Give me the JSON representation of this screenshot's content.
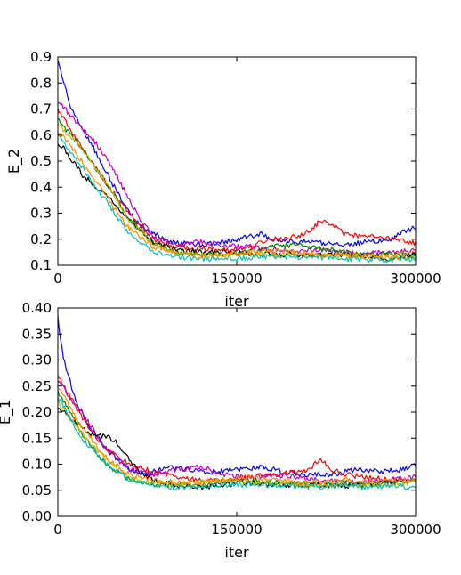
{
  "chart_data": [
    {
      "type": "line",
      "ylabel": "E_2",
      "xlabel": "iter",
      "xlim": [
        0,
        300000
      ],
      "ylim": [
        0.1,
        0.9
      ],
      "x_ticks": [
        0,
        150000,
        300000
      ],
      "x_tick_labels": [
        "0",
        "150000",
        "300000"
      ],
      "y_ticks": [
        0.1,
        0.2,
        0.3,
        0.4,
        0.5,
        0.6,
        0.7,
        0.8,
        0.9
      ],
      "y_tick_labels": [
        "0.1",
        "0.2",
        "0.3",
        "0.4",
        "0.5",
        "0.6",
        "0.7",
        "0.8",
        "0.9"
      ],
      "grid": false,
      "legend": "none",
      "series": [
        {
          "color": "#0000ff",
          "x": [
            0,
            10000,
            20000,
            30000,
            40000,
            50000,
            60000,
            70000,
            80000,
            90000,
            100000,
            120000,
            140000,
            160000,
            170000,
            180000,
            200000,
            220000,
            240000,
            260000,
            280000,
            290000,
            300000
          ],
          "y": [
            0.88,
            0.72,
            0.63,
            0.55,
            0.46,
            0.38,
            0.3,
            0.25,
            0.22,
            0.2,
            0.185,
            0.18,
            0.19,
            0.21,
            0.22,
            0.2,
            0.19,
            0.185,
            0.18,
            0.19,
            0.2,
            0.23,
            0.245
          ]
        },
        {
          "color": "#ff0000",
          "x": [
            0,
            20000,
            40000,
            60000,
            80000,
            100000,
            120000,
            140000,
            160000,
            180000,
            200000,
            210000,
            220000,
            230000,
            240000,
            260000,
            280000,
            300000
          ],
          "y": [
            0.7,
            0.55,
            0.42,
            0.3,
            0.2,
            0.17,
            0.165,
            0.16,
            0.17,
            0.2,
            0.21,
            0.23,
            0.27,
            0.26,
            0.22,
            0.21,
            0.2,
            0.185
          ]
        },
        {
          "color": "#bf00bf",
          "x": [
            0,
            10000,
            20000,
            30000,
            40000,
            50000,
            60000,
            70000,
            80000,
            100000,
            120000,
            140000,
            160000,
            180000,
            200000,
            220000,
            240000,
            260000,
            280000,
            300000
          ],
          "y": [
            0.73,
            0.68,
            0.63,
            0.58,
            0.52,
            0.44,
            0.35,
            0.27,
            0.21,
            0.18,
            0.19,
            0.175,
            0.17,
            0.16,
            0.155,
            0.16,
            0.15,
            0.145,
            0.15,
            0.155
          ]
        },
        {
          "color": "#008000",
          "x": [
            0,
            20000,
            40000,
            60000,
            80000,
            100000,
            120000,
            140000,
            160000,
            180000,
            200000,
            220000,
            240000,
            260000,
            280000,
            300000
          ],
          "y": [
            0.66,
            0.55,
            0.42,
            0.28,
            0.19,
            0.15,
            0.14,
            0.145,
            0.15,
            0.17,
            0.18,
            0.165,
            0.15,
            0.14,
            0.145,
            0.14
          ]
        },
        {
          "color": "#000000",
          "x": [
            0,
            5000,
            20000,
            40000,
            60000,
            80000,
            100000,
            120000,
            140000,
            160000,
            180000,
            200000,
            220000,
            240000,
            260000,
            280000,
            300000
          ],
          "y": [
            0.57,
            0.55,
            0.45,
            0.37,
            0.27,
            0.19,
            0.16,
            0.15,
            0.15,
            0.145,
            0.14,
            0.14,
            0.14,
            0.14,
            0.13,
            0.125,
            0.14
          ]
        },
        {
          "color": "#bfbf00",
          "x": [
            0,
            20000,
            40000,
            60000,
            80000,
            100000,
            120000,
            140000,
            160000,
            180000,
            200000,
            220000,
            240000,
            260000,
            280000,
            300000
          ],
          "y": [
            0.64,
            0.55,
            0.42,
            0.27,
            0.18,
            0.15,
            0.14,
            0.14,
            0.145,
            0.14,
            0.14,
            0.14,
            0.135,
            0.13,
            0.13,
            0.13
          ]
        },
        {
          "color": "#00bfbf",
          "x": [
            0,
            20000,
            40000,
            60000,
            80000,
            100000,
            120000,
            140000,
            160000,
            180000,
            200000,
            220000,
            240000,
            260000,
            280000,
            300000
          ],
          "y": [
            0.6,
            0.48,
            0.35,
            0.22,
            0.15,
            0.13,
            0.125,
            0.125,
            0.13,
            0.135,
            0.13,
            0.13,
            0.125,
            0.12,
            0.12,
            0.125
          ]
        },
        {
          "color": "#ff8c00",
          "x": [
            0,
            20000,
            40000,
            60000,
            80000,
            100000,
            120000,
            140000,
            160000,
            180000,
            200000,
            220000,
            240000,
            260000,
            280000,
            300000
          ],
          "y": [
            0.62,
            0.5,
            0.37,
            0.24,
            0.17,
            0.145,
            0.135,
            0.14,
            0.15,
            0.155,
            0.15,
            0.14,
            0.14,
            0.135,
            0.14,
            0.145
          ]
        }
      ]
    },
    {
      "type": "line",
      "ylabel": "E_1",
      "xlabel": "iter",
      "xlim": [
        0,
        300000
      ],
      "ylim": [
        0.0,
        0.4
      ],
      "x_ticks": [
        0,
        150000,
        300000
      ],
      "x_tick_labels": [
        "0",
        "150000",
        "300000"
      ],
      "y_ticks": [
        0.0,
        0.05,
        0.1,
        0.15,
        0.2,
        0.25,
        0.3,
        0.35,
        0.4
      ],
      "y_tick_labels": [
        "0.00",
        "0.05",
        "0.10",
        "0.15",
        "0.20",
        "0.25",
        "0.30",
        "0.35",
        "0.40"
      ],
      "grid": false,
      "legend": "none",
      "series": [
        {
          "color": "#0000ff",
          "x": [
            0,
            5000,
            15000,
            30000,
            45000,
            60000,
            75000,
            90000,
            110000,
            130000,
            150000,
            170000,
            190000,
            210000,
            230000,
            250000,
            270000,
            290000,
            300000
          ],
          "y": [
            0.38,
            0.3,
            0.22,
            0.16,
            0.12,
            0.09,
            0.08,
            0.095,
            0.09,
            0.085,
            0.09,
            0.095,
            0.085,
            0.08,
            0.08,
            0.09,
            0.085,
            0.09,
            0.1
          ]
        },
        {
          "color": "#ff0000",
          "x": [
            0,
            20000,
            40000,
            60000,
            80000,
            100000,
            120000,
            140000,
            160000,
            180000,
            200000,
            210000,
            220000,
            230000,
            240000,
            260000,
            280000,
            300000
          ],
          "y": [
            0.27,
            0.19,
            0.13,
            0.1,
            0.085,
            0.075,
            0.07,
            0.07,
            0.075,
            0.08,
            0.085,
            0.09,
            0.11,
            0.09,
            0.08,
            0.075,
            0.07,
            0.07
          ]
        },
        {
          "color": "#bf00bf",
          "x": [
            0,
            20000,
            40000,
            60000,
            80000,
            100000,
            120000,
            140000,
            160000,
            180000,
            200000,
            220000,
            240000,
            260000,
            280000,
            300000
          ],
          "y": [
            0.26,
            0.2,
            0.13,
            0.09,
            0.08,
            0.09,
            0.095,
            0.08,
            0.075,
            0.08,
            0.075,
            0.07,
            0.065,
            0.065,
            0.07,
            0.075
          ]
        },
        {
          "color": "#008000",
          "x": [
            0,
            20000,
            40000,
            60000,
            80000,
            100000,
            120000,
            140000,
            160000,
            180000,
            200000,
            220000,
            240000,
            260000,
            280000,
            300000
          ],
          "y": [
            0.24,
            0.16,
            0.1,
            0.07,
            0.06,
            0.06,
            0.06,
            0.065,
            0.07,
            0.065,
            0.065,
            0.06,
            0.065,
            0.06,
            0.065,
            0.07
          ]
        },
        {
          "color": "#000000",
          "x": [
            0,
            5000,
            20000,
            30000,
            40000,
            50000,
            60000,
            70000,
            80000,
            100000,
            120000,
            140000,
            160000,
            180000,
            200000,
            220000,
            240000,
            260000,
            280000,
            300000
          ],
          "y": [
            0.21,
            0.2,
            0.17,
            0.155,
            0.155,
            0.14,
            0.11,
            0.08,
            0.07,
            0.06,
            0.055,
            0.06,
            0.065,
            0.06,
            0.06,
            0.06,
            0.058,
            0.06,
            0.065,
            0.07
          ]
        },
        {
          "color": "#bfbf00",
          "x": [
            0,
            20000,
            40000,
            60000,
            80000,
            100000,
            120000,
            140000,
            160000,
            180000,
            200000,
            220000,
            240000,
            260000,
            280000,
            300000
          ],
          "y": [
            0.22,
            0.16,
            0.11,
            0.075,
            0.065,
            0.06,
            0.065,
            0.07,
            0.065,
            0.065,
            0.06,
            0.06,
            0.06,
            0.06,
            0.06,
            0.065
          ]
        },
        {
          "color": "#00bfbf",
          "x": [
            0,
            20000,
            40000,
            60000,
            80000,
            100000,
            120000,
            140000,
            160000,
            180000,
            200000,
            220000,
            240000,
            260000,
            280000,
            300000
          ],
          "y": [
            0.23,
            0.15,
            0.1,
            0.07,
            0.06,
            0.055,
            0.055,
            0.06,
            0.06,
            0.06,
            0.058,
            0.055,
            0.06,
            0.055,
            0.06,
            0.055
          ]
        },
        {
          "color": "#ff8c00",
          "x": [
            0,
            20000,
            40000,
            60000,
            80000,
            100000,
            120000,
            140000,
            160000,
            180000,
            200000,
            220000,
            240000,
            260000,
            280000,
            300000
          ],
          "y": [
            0.25,
            0.17,
            0.115,
            0.08,
            0.07,
            0.065,
            0.065,
            0.07,
            0.075,
            0.07,
            0.065,
            0.065,
            0.07,
            0.065,
            0.07,
            0.07
          ]
        }
      ]
    }
  ]
}
